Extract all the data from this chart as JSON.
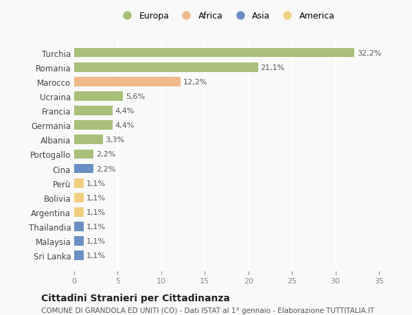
{
  "labels": [
    "Turchia",
    "Romania",
    "Marocco",
    "Ucraina",
    "Francia",
    "Germania",
    "Albania",
    "Portogallo",
    "Cina",
    "Perù",
    "Bolivia",
    "Argentina",
    "Thailandia",
    "Malaysia",
    "Sri Lanka"
  ],
  "values": [
    32.2,
    21.1,
    12.2,
    5.6,
    4.4,
    4.4,
    3.3,
    2.2,
    2.2,
    1.1,
    1.1,
    1.1,
    1.1,
    1.1,
    1.1
  ],
  "pct_labels": [
    "32,2%",
    "21,1%",
    "12,2%",
    "5,6%",
    "4,4%",
    "4,4%",
    "3,3%",
    "2,2%",
    "2,2%",
    "1,1%",
    "1,1%",
    "1,1%",
    "1,1%",
    "1,1%",
    "1,1%"
  ],
  "continents": [
    "Europa",
    "Europa",
    "Africa",
    "Europa",
    "Europa",
    "Europa",
    "Europa",
    "Europa",
    "Asia",
    "America",
    "America",
    "America",
    "Asia",
    "Asia",
    "Asia"
  ],
  "colors": {
    "Europa": "#a8c07a",
    "Africa": "#f0b98a",
    "Asia": "#6a8fc2",
    "America": "#f0d080"
  },
  "legend_order": [
    "Europa",
    "Africa",
    "Asia",
    "America"
  ],
  "title": "Cittadini Stranieri per Cittadinanza",
  "subtitle": "COMUNE DI GRANDOLA ED UNITI (CO) - Dati ISTAT al 1° gennaio - Elaborazione TUTTITALIA.IT",
  "xlim": [
    0,
    35
  ],
  "xticks": [
    0,
    5,
    10,
    15,
    20,
    25,
    30,
    35
  ],
  "background_color": "#f9f9f9",
  "grid_color": "#ffffff",
  "bar_height": 0.65
}
